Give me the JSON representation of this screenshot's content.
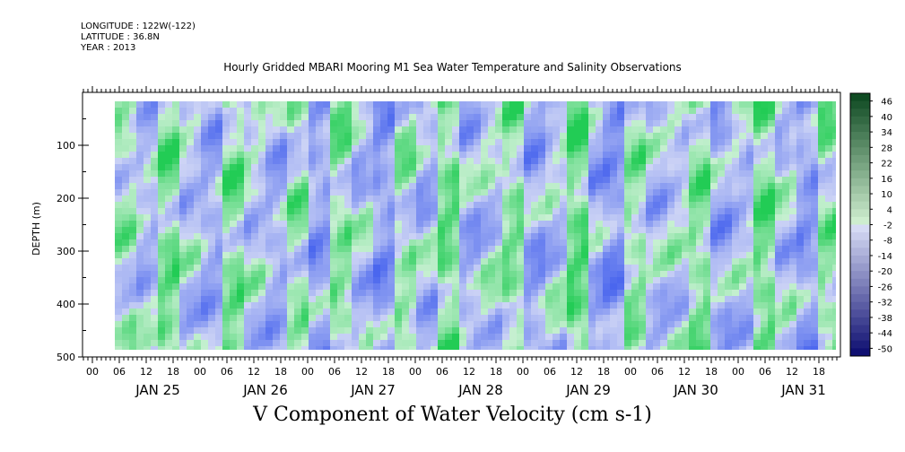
{
  "meta": {
    "longitude": "LONGITUDE : 122W(-122)",
    "latitude": "LATITUDE : 36.8N",
    "year": "YEAR : 2013"
  },
  "colors": {
    "positive": "#22cc55",
    "neutral": "#ffffff",
    "negative": "#4a66ee"
  },
  "chart_data": {
    "type": "heatmap",
    "title": "Hourly Gridded MBARI Mooring M1 Sea Water Temperature and Salinity Observations",
    "xlabel": "V Component of Water Velocity (cm s-1)",
    "ylabel": "DEPTH (m)",
    "y_range": [
      0,
      500
    ],
    "y_ticks": [
      "100",
      "200",
      "300",
      "400",
      "500"
    ],
    "y_tick_values": [
      100,
      200,
      300,
      400,
      500
    ],
    "hour_ticks": [
      "00",
      "06",
      "12",
      "18",
      "00",
      "06",
      "12",
      "18",
      "00",
      "06",
      "12",
      "18",
      "00",
      "06",
      "12",
      "18",
      "00",
      "06",
      "12",
      "18",
      "00",
      "06",
      "12",
      "18",
      "00",
      "06",
      "12",
      "18"
    ],
    "days": [
      "JAN 25",
      "JAN 26",
      "JAN 27",
      "JAN 28",
      "JAN 29",
      "JAN 30",
      "JAN 31"
    ],
    "colorbar_levels": [
      "46",
      "40",
      "34",
      "28",
      "22",
      "16",
      "10",
      "4",
      "-2",
      "-8",
      "-14",
      "-20",
      "-26",
      "-32",
      "-38",
      "-44",
      "-50"
    ],
    "colorbar_range": [
      -50,
      52
    ]
  }
}
